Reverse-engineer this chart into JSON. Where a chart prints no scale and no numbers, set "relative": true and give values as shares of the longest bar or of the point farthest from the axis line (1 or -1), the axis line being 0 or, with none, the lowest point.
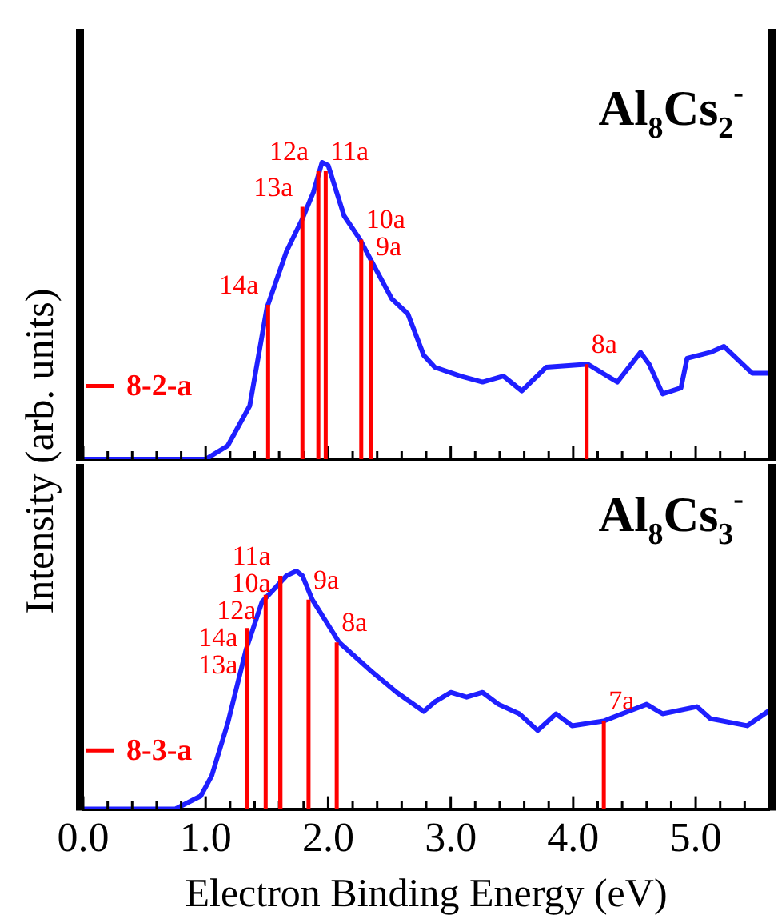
{
  "chart_data": [
    {
      "type": "line",
      "title": "Al$_{8}$Cs$_{2}$$^{-}$",
      "ylabel": "Intensity (arb. units)",
      "relative": true,
      "color": "#1f1fff",
      "marker": "none",
      "tick_labels": false,
      "xlim": [
        0,
        5.6
      ],
      "xticks": [
        {
          "value": 0,
          "label": null
        },
        {
          "value": 0.2,
          "label": null
        },
        {
          "value": 0.4,
          "label": null
        },
        {
          "value": 0.6,
          "label": null
        },
        {
          "value": 0.8,
          "label": null
        },
        {
          "value": 1,
          "label": null
        },
        {
          "value": 1.2,
          "label": null
        },
        {
          "value": 1.4,
          "label": null
        },
        {
          "value": 1.6,
          "label": null
        },
        {
          "value": 1.8,
          "label": null
        },
        {
          "value": 2,
          "label": null
        },
        {
          "value": 2.2,
          "label": null
        },
        {
          "value": 2.4,
          "label": null
        },
        {
          "value": 2.6,
          "label": null
        },
        {
          "value": 2.8,
          "label": null
        },
        {
          "value": 3,
          "label": null
        },
        {
          "value": 3.2,
          "label": null
        },
        {
          "value": 3.4,
          "label": null
        },
        {
          "value": 3.6,
          "label": null
        },
        {
          "value": 3.8,
          "label": null
        },
        {
          "value": 4,
          "label": null
        },
        {
          "value": 4.2,
          "label": null
        },
        {
          "value": 4.4,
          "label": null
        },
        {
          "value": 4.6,
          "label": null
        },
        {
          "value": 4.8,
          "label": null
        },
        {
          "value": 5,
          "label": null
        },
        {
          "value": 5.2,
          "label": null
        },
        {
          "value": 5.4,
          "label": null
        }
      ],
      "x": [
        0,
        1.0,
        1.18,
        1.36,
        1.5,
        1.66,
        1.79,
        1.88,
        1.95,
        2.0,
        2.13,
        2.26,
        2.35,
        2.52,
        2.65,
        2.78,
        2.87,
        3.08,
        3.26,
        3.43,
        3.58,
        3.78,
        4.12,
        4.36,
        4.55,
        4.62,
        4.73,
        4.88,
        4.93,
        5.12,
        5.23,
        5.46,
        5.59
      ],
      "values": [
        0,
        0,
        0.045,
        0.18,
        0.51,
        0.7,
        0.81,
        0.9,
        1.0,
        0.99,
        0.82,
        0.74,
        0.67,
        0.54,
        0.49,
        0.35,
        0.31,
        0.28,
        0.26,
        0.28,
        0.23,
        0.31,
        0.32,
        0.26,
        0.36,
        0.32,
        0.22,
        0.24,
        0.34,
        0.36,
        0.38,
        0.29,
        0.29
      ],
      "annotations": [
        "8-2-a",
        {
          "text": "14a",
          "x": 1.51,
          "y": 0.52
        },
        {
          "text": "13a",
          "x": 1.79,
          "y": 0.85
        },
        {
          "text": "12a",
          "x": 1.92,
          "y": 0.97
        },
        {
          "text": "11a",
          "x": 1.98,
          "y": 0.97
        },
        {
          "text": "10a",
          "x": 2.27,
          "y": 0.74
        },
        {
          "text": "9a",
          "x": 2.35,
          "y": 0.67
        },
        {
          "text": "8a",
          "x": 4.11,
          "y": 0.32
        }
      ]
    },
    {
      "type": "line",
      "title": "Al$_{8}$Cs$_{3}$$^{-}$",
      "xlabel": "Electron Binding Energy (eV)",
      "relative": true,
      "color": "#1f1fff",
      "marker": "none",
      "tick_labels": "x",
      "xlim": [
        0,
        5.6
      ],
      "xticks": [
        {
          "value": 0,
          "label": "0.0"
        },
        {
          "value": 0.2,
          "label": null
        },
        {
          "value": 0.4,
          "label": null
        },
        {
          "value": 0.6,
          "label": null
        },
        {
          "value": 0.8,
          "label": null
        },
        {
          "value": 1,
          "label": "1.0"
        },
        {
          "value": 1.2,
          "label": null
        },
        {
          "value": 1.4,
          "label": null
        },
        {
          "value": 1.6,
          "label": null
        },
        {
          "value": 1.8,
          "label": null
        },
        {
          "value": 2,
          "label": "2.0"
        },
        {
          "value": 2.2,
          "label": null
        },
        {
          "value": 2.4,
          "label": null
        },
        {
          "value": 2.6,
          "label": null
        },
        {
          "value": 2.8,
          "label": null
        },
        {
          "value": 3,
          "label": "3.0"
        },
        {
          "value": 3.2,
          "label": null
        },
        {
          "value": 3.4,
          "label": null
        },
        {
          "value": 3.6,
          "label": null
        },
        {
          "value": 3.8,
          "label": null
        },
        {
          "value": 4,
          "label": "4.0"
        },
        {
          "value": 4.2,
          "label": null
        },
        {
          "value": 4.4,
          "label": null
        },
        {
          "value": 4.6,
          "label": null
        },
        {
          "value": 4.8,
          "label": null
        },
        {
          "value": 5,
          "label": "5.0"
        },
        {
          "value": 5.2,
          "label": null
        },
        {
          "value": 5.4,
          "label": null
        }
      ],
      "x": [
        0,
        0.75,
        0.96,
        1.05,
        1.18,
        1.33,
        1.46,
        1.57,
        1.66,
        1.74,
        1.79,
        1.87,
        2.09,
        2.35,
        2.56,
        2.78,
        2.87,
        3.0,
        3.13,
        3.26,
        3.39,
        3.56,
        3.71,
        3.86,
        3.99,
        4.25,
        4.45,
        4.6,
        4.73,
        5.01,
        5.12,
        5.42,
        5.59
      ],
      "values": [
        0,
        0,
        0.055,
        0.14,
        0.36,
        0.67,
        0.87,
        0.93,
        0.98,
        1.0,
        0.98,
        0.88,
        0.7,
        0.58,
        0.49,
        0.41,
        0.45,
        0.49,
        0.47,
        0.49,
        0.44,
        0.4,
        0.33,
        0.4,
        0.35,
        0.37,
        0.41,
        0.44,
        0.4,
        0.43,
        0.38,
        0.35,
        0.41
      ],
      "annotations": [
        "8-3-a",
        {
          "text": "14a",
          "x": 1.34,
          "y": 0.76
        },
        {
          "text": "13a",
          "x": 1.34,
          "y": 0.76
        },
        {
          "text": "12a",
          "x": 1.49,
          "y": 0.9
        },
        {
          "text": "11a",
          "x": 1.61,
          "y": 0.98
        },
        {
          "text": "10a",
          "x": 1.61,
          "y": 0.98
        },
        {
          "text": "9a",
          "x": 1.84,
          "y": 0.88
        },
        {
          "text": "8a",
          "x": 2.07,
          "y": 0.7
        },
        {
          "text": "7a",
          "x": 4.25,
          "y": 0.37
        }
      ]
    }
  ]
}
